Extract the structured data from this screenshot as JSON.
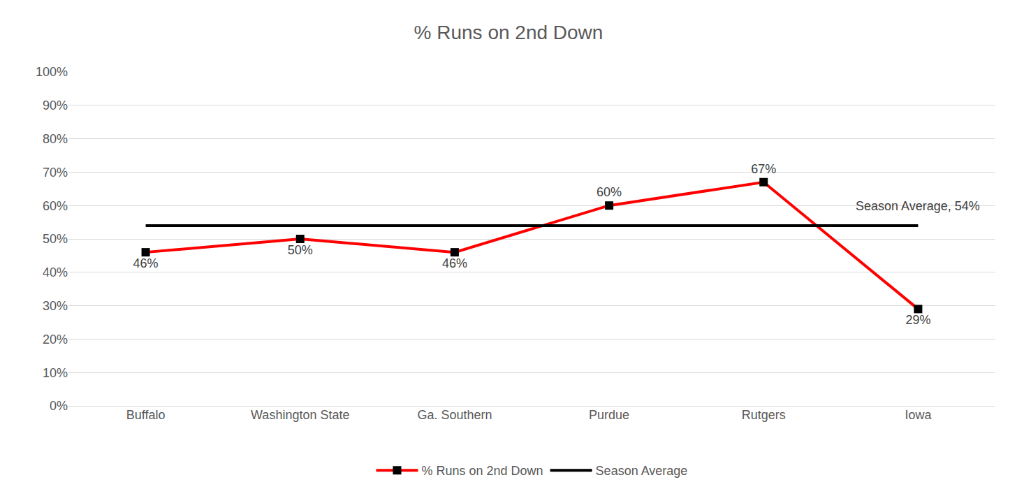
{
  "chart_data": {
    "type": "line",
    "title": "% Runs on 2nd Down",
    "categories": [
      "Buffalo",
      "Washington State",
      "Ga. Southern",
      "Purdue",
      "Rutgers",
      "Iowa"
    ],
    "series": [
      {
        "name": "% Runs on 2nd Down",
        "color": "#ff0000",
        "marker": "square",
        "line_style": "solid",
        "data_labels": true,
        "values": [
          46,
          50,
          46,
          60,
          67,
          29
        ],
        "value_labels": [
          "46%",
          "50%",
          "46%",
          "60%",
          "67%",
          "29%"
        ]
      },
      {
        "name": "Season Average",
        "color": "#000000",
        "marker": "none",
        "line_style": "solid",
        "values": [
          54,
          54,
          54,
          54,
          54,
          54
        ]
      }
    ],
    "annotations": [
      "Season Average, 54%"
    ],
    "ylim": [
      0,
      100
    ],
    "yticks": [
      {
        "value": 0,
        "label": "0%"
      },
      {
        "value": 10,
        "label": "10%"
      },
      {
        "value": 20,
        "label": "20%"
      },
      {
        "value": 30,
        "label": "30%"
      },
      {
        "value": 40,
        "label": "40%"
      },
      {
        "value": 50,
        "label": "50%"
      },
      {
        "value": 60,
        "label": "60%"
      },
      {
        "value": 70,
        "label": "70%"
      },
      {
        "value": 80,
        "label": "80%"
      },
      {
        "value": 90,
        "label": "90%"
      },
      {
        "value": 100,
        "label": "100%"
      }
    ],
    "grid": true,
    "legend": "bottom"
  }
}
